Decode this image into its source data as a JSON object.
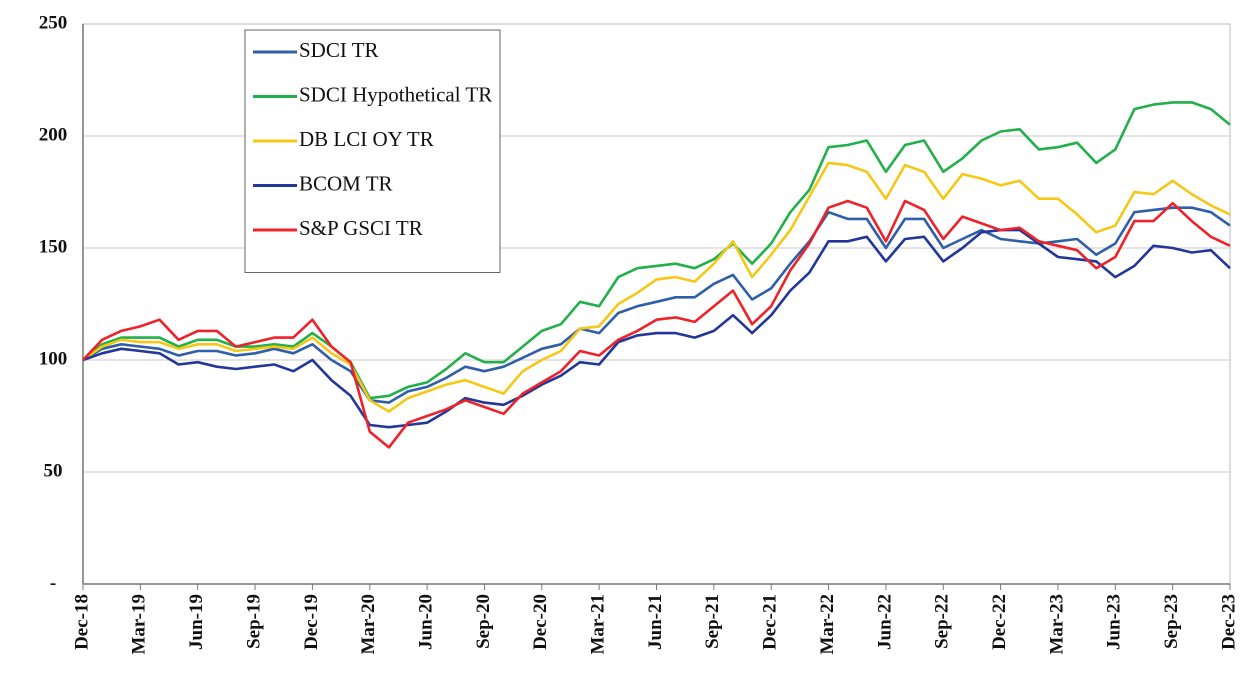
{
  "chart_data": {
    "type": "line",
    "categories": [
      "Dec-18",
      null,
      null,
      "Mar-19",
      null,
      null,
      "Jun-19",
      null,
      null,
      "Sep-19",
      null,
      null,
      "Dec-19",
      null,
      null,
      "Mar-20",
      null,
      null,
      "Jun-20",
      null,
      null,
      "Sep-20",
      null,
      null,
      "Dec-20",
      null,
      null,
      "Mar-21",
      null,
      null,
      "Jun-21",
      null,
      null,
      "Sep-21",
      null,
      null,
      "Dec-21",
      null,
      null,
      "Mar-22",
      null,
      null,
      "Jun-22",
      null,
      null,
      "Sep-22",
      null,
      null,
      "Dec-22",
      null,
      null,
      "Mar-23",
      null,
      null,
      "Jun-23",
      null,
      null,
      "Sep-23",
      null,
      null,
      "Dec-23"
    ],
    "series": [
      {
        "name": "SDCI TR",
        "color": "#2e5fa8",
        "values": [
          100,
          105,
          107,
          106,
          105,
          102,
          104,
          104,
          102,
          103,
          105,
          103,
          107,
          100,
          95,
          82,
          81,
          86,
          88,
          92,
          97,
          95,
          97,
          101,
          105,
          107,
          114,
          112,
          121,
          124,
          126,
          128,
          128,
          134,
          138,
          127,
          132,
          143,
          153,
          166,
          163,
          163,
          150,
          163,
          163,
          150,
          154,
          158,
          154,
          153,
          152,
          153,
          154,
          147,
          152,
          166,
          167,
          168,
          168,
          166,
          160
        ]
      },
      {
        "name": "SDCI Hypothetical TR",
        "color": "#22b04b",
        "values": [
          100,
          107,
          110,
          110,
          110,
          106,
          109,
          109,
          106,
          106,
          107,
          106,
          112,
          106,
          99,
          83,
          84,
          88,
          90,
          96,
          103,
          99,
          99,
          106,
          113,
          116,
          126,
          124,
          137,
          141,
          142,
          143,
          141,
          145,
          152,
          143,
          152,
          166,
          176,
          195,
          196,
          198,
          184,
          196,
          198,
          184,
          190,
          198,
          202,
          203,
          194,
          195,
          197,
          188,
          194,
          212,
          214,
          215,
          215,
          212,
          205
        ]
      },
      {
        "name": "DB LCI OY TR",
        "color": "#f5c816",
        "values": [
          100,
          106,
          109,
          108,
          108,
          105,
          107,
          107,
          104,
          105,
          106,
          105,
          110,
          103,
          98,
          82,
          77,
          83,
          86,
          89,
          91,
          88,
          85,
          95,
          100,
          104,
          114,
          115,
          125,
          130,
          136,
          137,
          135,
          143,
          153,
          137,
          147,
          158,
          173,
          188,
          187,
          184,
          172,
          187,
          184,
          172,
          183,
          181,
          178,
          180,
          172,
          172,
          165,
          157,
          160,
          175,
          174,
          180,
          174,
          169,
          165
        ]
      },
      {
        "name": "BCOM TR",
        "color": "#23379a",
        "values": [
          100,
          103,
          105,
          104,
          103,
          98,
          99,
          97,
          96,
          97,
          98,
          95,
          100,
          91,
          84,
          71,
          70,
          71,
          72,
          77,
          83,
          81,
          80,
          84,
          89,
          93,
          99,
          98,
          108,
          111,
          112,
          112,
          110,
          113,
          120,
          112,
          120,
          131,
          139,
          153,
          153,
          155,
          144,
          154,
          155,
          144,
          150,
          157,
          158,
          158,
          152,
          146,
          145,
          144,
          137,
          142,
          151,
          150,
          148,
          149,
          141
        ]
      },
      {
        "name": "S&P GSCI TR",
        "color": "#ee2229",
        "values": [
          100,
          109,
          113,
          115,
          118,
          109,
          113,
          113,
          106,
          108,
          110,
          110,
          118,
          106,
          99,
          68,
          61,
          72,
          75,
          78,
          82,
          79,
          76,
          85,
          90,
          95,
          104,
          102,
          109,
          113,
          118,
          119,
          117,
          124,
          131,
          116,
          124,
          140,
          152,
          168,
          171,
          168,
          153,
          171,
          167,
          154,
          164,
          161,
          158,
          159,
          153,
          151,
          149,
          141,
          146,
          162,
          162,
          170,
          162,
          155,
          151
        ]
      }
    ],
    "ylim": [
      0,
      250
    ],
    "yticks": [
      {
        "value": 0,
        "label": "-"
      },
      50,
      100,
      150,
      200,
      250
    ],
    "grid": true
  }
}
